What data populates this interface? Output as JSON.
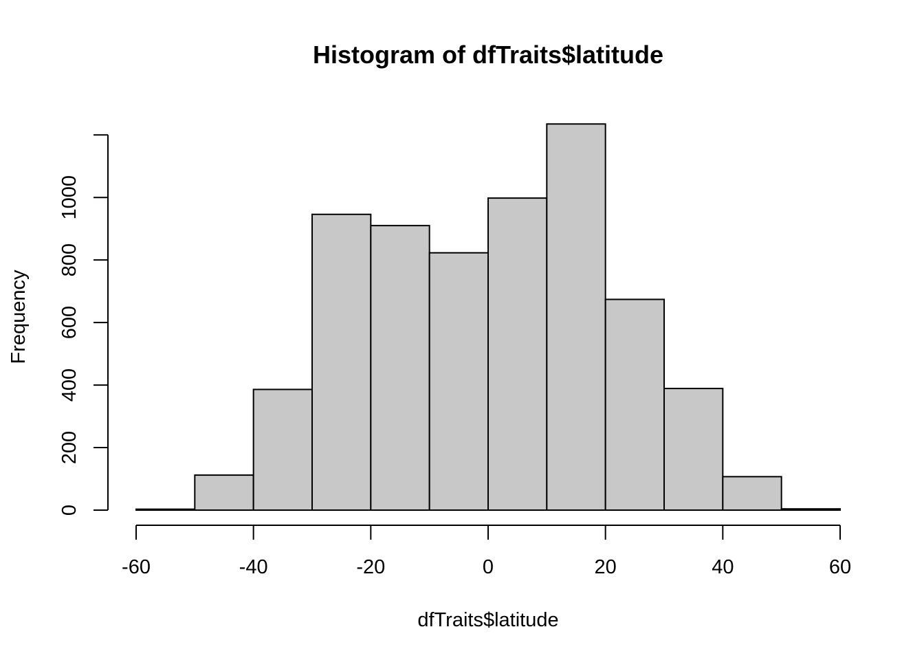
{
  "chart_data": {
    "type": "bar",
    "title": "Histogram of dfTraits$latitude",
    "xlabel": "dfTraits$latitude",
    "ylabel": "Frequency",
    "bins": [
      {
        "from": -60,
        "to": -50,
        "count": 3
      },
      {
        "from": -50,
        "to": -40,
        "count": 112
      },
      {
        "from": -40,
        "to": -30,
        "count": 386
      },
      {
        "from": -30,
        "to": -20,
        "count": 946
      },
      {
        "from": -20,
        "to": -10,
        "count": 910
      },
      {
        "from": -10,
        "to": 0,
        "count": 823
      },
      {
        "from": 0,
        "to": 10,
        "count": 998
      },
      {
        "from": 10,
        "to": 20,
        "count": 1235
      },
      {
        "from": 20,
        "to": 30,
        "count": 674
      },
      {
        "from": 30,
        "to": 40,
        "count": 389
      },
      {
        "from": 40,
        "to": 50,
        "count": 107
      },
      {
        "from": 50,
        "to": 60,
        "count": 4
      }
    ],
    "xlim": [
      -60,
      60
    ],
    "ylim": [
      0,
      1200
    ],
    "x_ticks": [
      -60,
      -40,
      -20,
      0,
      20,
      40,
      60
    ],
    "y_ticks": [
      0,
      200,
      400,
      600,
      800,
      1000
    ],
    "bar_color": "#c8c8c8",
    "grid": false
  }
}
